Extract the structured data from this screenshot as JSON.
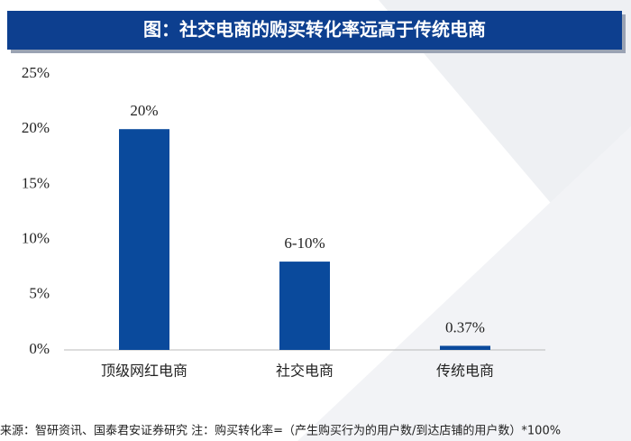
{
  "chart_data": {
    "type": "bar",
    "title": "图：社交电商的购买转化率远高于传统电商",
    "categories": [
      "顶级网红电商",
      "社交电商",
      "传统电商"
    ],
    "values": [
      20,
      8,
      0.37
    ],
    "value_labels": [
      "20%",
      "6-10%",
      "0.37%"
    ],
    "color": "#0a4a9c",
    "ylim": [
      0,
      25
    ],
    "yticks": [
      {
        "value": 0,
        "label": "0%"
      },
      {
        "value": 5,
        "label": "5%"
      },
      {
        "value": 10,
        "label": "10%"
      },
      {
        "value": 15,
        "label": "15%"
      },
      {
        "value": 20,
        "label": "20%"
      },
      {
        "value": 25,
        "label": "25%"
      }
    ],
    "source": "来源：智研资讯、国泰君安证券研究 注：购买转化率=（产生购买行为的用户数/到达店铺的用户数）*100%"
  }
}
